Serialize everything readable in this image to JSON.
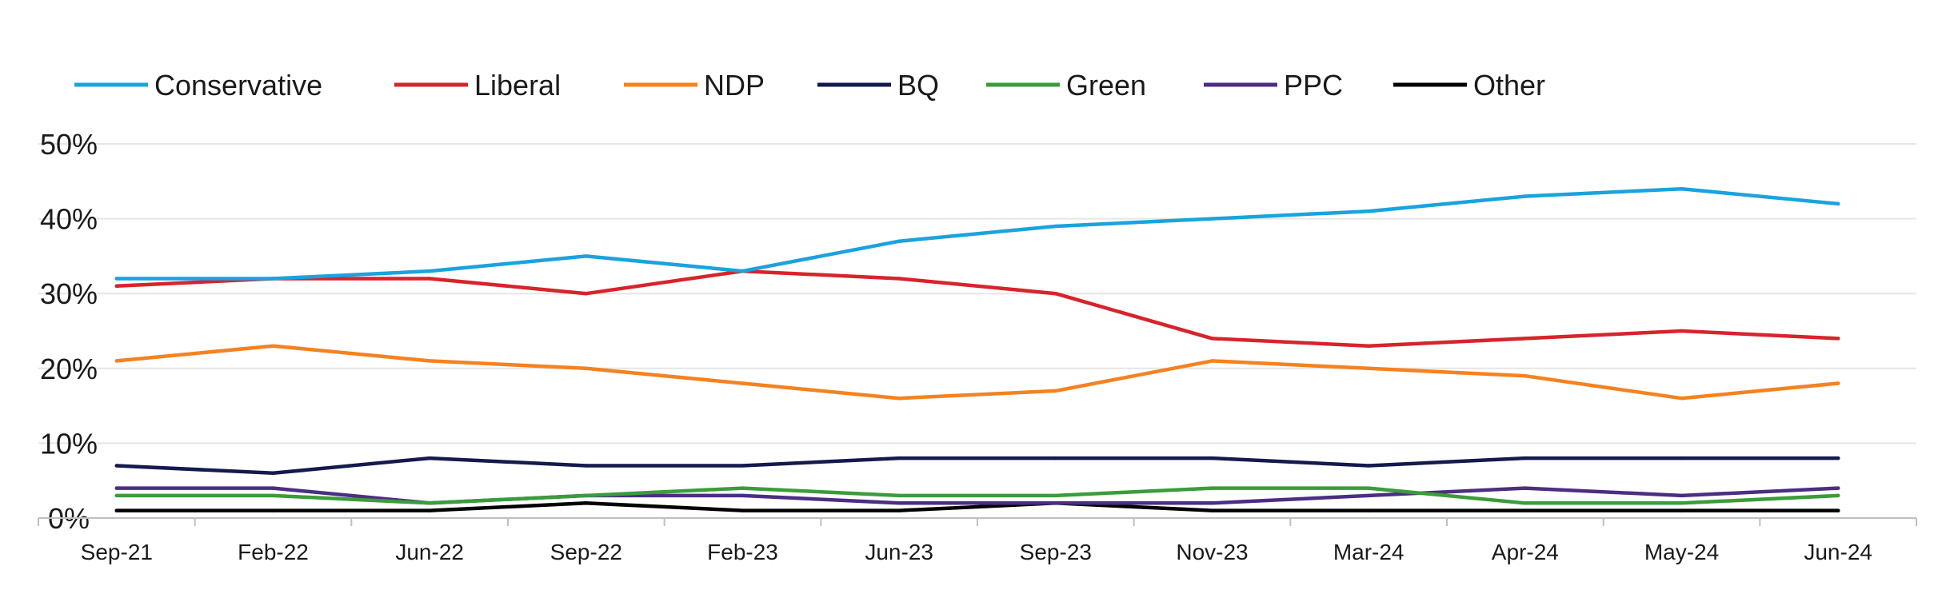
{
  "chart_data": {
    "type": "line",
    "categories": [
      "Sep-21",
      "Feb-22",
      "Jun-22",
      "Sep-22",
      "Feb-23",
      "Jun-23",
      "Sep-23",
      "Nov-23",
      "Mar-24",
      "Apr-24",
      "May-24",
      "Jun-24"
    ],
    "yticks": [
      "0%",
      "10%",
      "20%",
      "30%",
      "40%",
      "50%"
    ],
    "ylim": [
      0,
      50
    ],
    "grid": true,
    "legend_position": "top-left",
    "series": [
      {
        "name": "Conservative",
        "color": "#1AA3DD",
        "values": [
          32,
          32,
          33,
          35,
          33,
          37,
          39,
          40,
          41,
          43,
          44,
          42
        ]
      },
      {
        "name": "Liberal",
        "color": "#D7242B",
        "values": [
          31,
          32,
          32,
          30,
          33,
          32,
          30,
          24,
          23,
          24,
          25,
          24
        ]
      },
      {
        "name": "NDP",
        "color": "#F58220",
        "values": [
          21,
          23,
          21,
          20,
          18,
          16,
          17,
          21,
          20,
          19,
          16,
          18
        ]
      },
      {
        "name": "BQ",
        "color": "#141A4E",
        "values": [
          7,
          6,
          8,
          7,
          7,
          8,
          8,
          8,
          7,
          8,
          8,
          8
        ]
      },
      {
        "name": "Green",
        "color": "#3B9C3B",
        "values": [
          3,
          3,
          2,
          3,
          4,
          3,
          3,
          4,
          4,
          2,
          2,
          3
        ]
      },
      {
        "name": "PPC",
        "color": "#4B2E83",
        "values": [
          4,
          4,
          2,
          3,
          3,
          2,
          2,
          2,
          3,
          4,
          3,
          4
        ]
      },
      {
        "name": "Other",
        "color": "#000000",
        "values": [
          1,
          1,
          1,
          2,
          1,
          1,
          2,
          1,
          1,
          1,
          1,
          1
        ]
      }
    ]
  }
}
